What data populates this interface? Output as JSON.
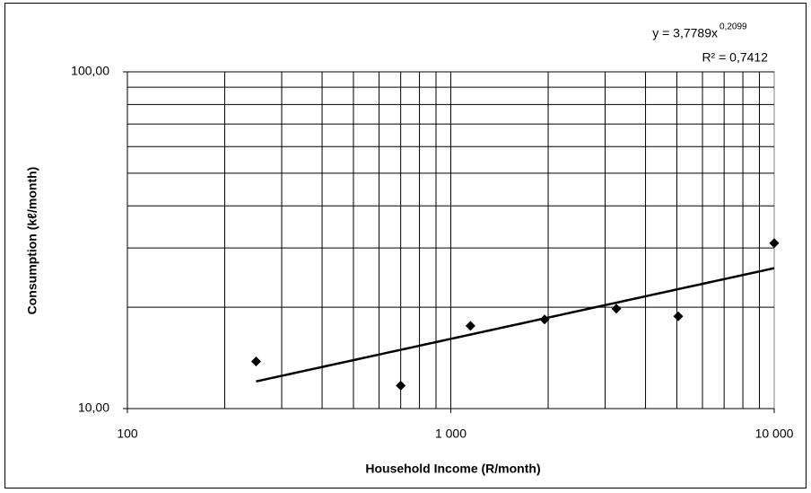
{
  "chart_data": {
    "type": "scatter",
    "x_label": "Household Income (R/month)",
    "y_label": "Consumption (kℓ/month)",
    "x": [
      250,
      700,
      1150,
      1950,
      3250,
      5050,
      10000
    ],
    "values": [
      13.8,
      11.7,
      17.6,
      18.4,
      19.8,
      18.8,
      31
    ],
    "color": "#000000",
    "log_x": true,
    "log_y": true,
    "xlim": [
      100,
      10000
    ],
    "ylim": [
      10,
      100
    ],
    "xticks": [
      100,
      {
        "value": 1000,
        "label": "1 000"
      },
      {
        "value": 10000,
        "label": "10 000"
      }
    ],
    "yticks": [
      {
        "value": 10,
        "label": "10,00"
      },
      {
        "value": 100,
        "label": "100,00"
      }
    ],
    "xgrid": [
      200,
      300,
      400,
      500,
      600,
      700,
      800,
      900,
      1000,
      2000,
      3000,
      4000,
      5000,
      6000,
      7000,
      8000,
      9000
    ],
    "ygrid": [
      20,
      30,
      40,
      50,
      60,
      70,
      80,
      90,
      100
    ],
    "trendline": {
      "coefficient": 3.7789,
      "exponent": 0.2099,
      "x_range": [
        250,
        10000
      ]
    },
    "equation": "y = 3,7789x",
    "equation_exponent": "0,2099",
    "r_squared": "R² = 0,7412"
  }
}
